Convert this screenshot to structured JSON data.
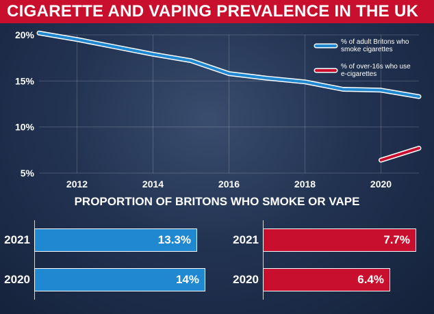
{
  "title": "CIGARETTE AND VAPING PREVALENCE IN THE UK",
  "subtitle": "PROPORTION OF BRITONS WHO SMOKE OR VAPE",
  "colors": {
    "smoke": "#1f88d1",
    "vape": "#c8102e",
    "banner": "#c8102e"
  },
  "chart_data": [
    {
      "type": "line",
      "title": "",
      "xlabel": "",
      "ylabel": "",
      "xlim": [
        2011,
        2021
      ],
      "ylim": [
        5,
        20
      ],
      "x_ticks": [
        "2012",
        "2014",
        "2016",
        "2018",
        "2020"
      ],
      "y_ticks": [
        "5%",
        "10%",
        "15%",
        "20%"
      ],
      "grid": true,
      "legend_position": "top-right",
      "series": [
        {
          "name": "% of adult Britons who smoke cigarettes",
          "legend_lines": [
            "% of adult Britons who",
            "smoke cigarettes"
          ],
          "color": "#1f88d1",
          "points": [
            [
              2011,
              20.2
            ],
            [
              2012,
              19.5
            ],
            [
              2013,
              18.7
            ],
            [
              2014,
              17.9
            ],
            [
              2015,
              17.2
            ],
            [
              2016,
              15.8
            ],
            [
              2017,
              15.3
            ],
            [
              2018,
              14.9
            ],
            [
              2019,
              14.1
            ],
            [
              2020,
              14.0
            ],
            [
              2021,
              13.3
            ]
          ]
        },
        {
          "name": "% of over-16s who use e-cigarettes",
          "legend_lines": [
            "% of over-16s who use",
            "e-cigarettes"
          ],
          "color": "#c8102e",
          "points": [
            [
              2020,
              6.4
            ],
            [
              2021,
              7.7
            ]
          ]
        }
      ]
    },
    {
      "type": "bar",
      "orientation": "horizontal",
      "categories": [
        "2021",
        "2020"
      ],
      "values": [
        13.3,
        14
      ],
      "labels": [
        "13.3%",
        "14%"
      ],
      "color": "#1f88d1"
    },
    {
      "type": "bar",
      "orientation": "horizontal",
      "categories": [
        "2021",
        "2020"
      ],
      "values": [
        7.7,
        6.4
      ],
      "labels": [
        "7.7%",
        "6.4%"
      ],
      "color": "#c8102e"
    }
  ]
}
